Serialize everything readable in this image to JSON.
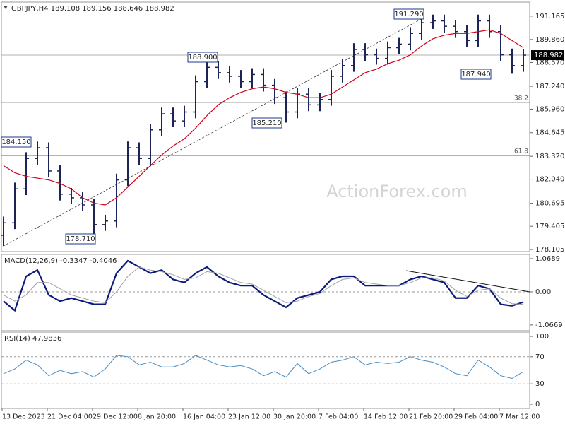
{
  "watermark": "ActionForex.com",
  "chart_data": [
    {
      "type": "ohlc",
      "title": "GBPJPY,H4  189.108 189.156 188.646 188.982",
      "color": "#1c2455",
      "categories": [
        "13 Dec 2023",
        null,
        null,
        null,
        "21 Dec 04:00",
        null,
        null,
        null,
        "29 Dec 12:00",
        null,
        null,
        null,
        "8 Jan 20:00",
        null,
        null,
        null,
        "16 Jan 04:00",
        null,
        null,
        null,
        "23 Jan 12:00",
        null,
        null,
        null,
        "30 Jan 20:00",
        null,
        null,
        null,
        "7 Feb 04:00",
        null,
        null,
        null,
        "14 Feb 12:00",
        null,
        null,
        null,
        "21 Feb 20:00",
        null,
        null,
        null,
        "29 Feb 04:00",
        null,
        null,
        null,
        "7 Mar 12:00",
        null,
        null
      ],
      "open": [
        178.9,
        179.6,
        181.5,
        183.2,
        183.8,
        182.5,
        181.2,
        181.0,
        180.6,
        179.5,
        179.7,
        182.0,
        183.8,
        183.2,
        184.8,
        185.7,
        185.3,
        185.8,
        187.5,
        188.3,
        188.0,
        187.8,
        187.5,
        187.9,
        187.3,
        186.6,
        185.8,
        186.8,
        186.2,
        186.5,
        187.8,
        188.4,
        189.3,
        189.0,
        188.8,
        189.4,
        189.6,
        190.2,
        190.8,
        190.9,
        190.6,
        190.3,
        189.8,
        190.9,
        190.3,
        189.0,
        188.4
      ],
      "high": [
        179.95,
        181.85,
        183.55,
        184.15,
        184.1,
        182.85,
        181.55,
        181.35,
        180.95,
        180.05,
        182.35,
        184.15,
        184.1,
        185.15,
        186.05,
        186.05,
        186.15,
        187.85,
        188.9,
        188.65,
        188.35,
        188.15,
        188.25,
        188.25,
        187.65,
        186.95,
        187.15,
        187.15,
        186.85,
        188.15,
        188.75,
        189.65,
        189.65,
        189.35,
        189.75,
        189.95,
        190.55,
        191.29,
        191.25,
        191.25,
        190.95,
        190.65,
        191.25,
        191.25,
        190.65,
        189.35,
        189.33
      ],
      "low": [
        178.3,
        179.25,
        181.15,
        182.85,
        182.15,
        180.85,
        180.65,
        180.25,
        178.71,
        179.15,
        179.35,
        181.65,
        182.85,
        182.85,
        184.45,
        184.95,
        184.95,
        185.45,
        187.15,
        187.65,
        187.45,
        187.15,
        187.15,
        186.95,
        186.25,
        185.21,
        185.45,
        185.85,
        185.85,
        186.15,
        187.45,
        188.05,
        188.65,
        188.45,
        188.45,
        189.05,
        189.25,
        189.85,
        190.45,
        190.25,
        189.95,
        189.45,
        189.45,
        189.95,
        188.65,
        187.94,
        188.05
      ],
      "close": [
        179.6,
        181.5,
        183.2,
        183.8,
        182.5,
        181.2,
        181.0,
        180.6,
        179.5,
        179.7,
        182.0,
        183.8,
        183.2,
        184.8,
        185.7,
        185.3,
        185.8,
        187.5,
        188.3,
        188.0,
        187.8,
        187.5,
        187.9,
        187.3,
        186.6,
        185.8,
        186.8,
        186.2,
        186.5,
        187.8,
        188.4,
        189.3,
        189.0,
        188.8,
        189.4,
        189.6,
        190.2,
        190.8,
        190.9,
        190.6,
        190.3,
        189.8,
        190.9,
        190.3,
        189.0,
        188.4,
        188.982
      ],
      "ma": {
        "color": "#d0021b",
        "values": [
          182.8,
          182.4,
          182.2,
          182.1,
          182.0,
          181.8,
          181.5,
          181.0,
          180.7,
          180.6,
          181.0,
          181.6,
          182.2,
          182.8,
          183.4,
          183.9,
          184.3,
          184.9,
          185.6,
          186.2,
          186.6,
          186.9,
          187.1,
          187.2,
          187.1,
          186.9,
          186.8,
          186.6,
          186.6,
          186.8,
          187.2,
          187.6,
          188.0,
          188.2,
          188.5,
          188.7,
          189.0,
          189.5,
          189.9,
          190.1,
          190.2,
          190.2,
          190.3,
          190.4,
          190.2,
          189.8,
          189.4
        ]
      },
      "last_price": 188.982,
      "levels": [
        {
          "name": "38.2",
          "value": 186.34
        },
        {
          "name": "61.8",
          "value": 183.37
        }
      ],
      "annotations": [
        "184.150",
        "178.710",
        "188.900",
        "185.210",
        "191.290",
        "187.940"
      ],
      "ylim": [
        177.99,
        191.95
      ],
      "yticks": [
        191.165,
        {
          "value": 189.86,
          "label": "189.860"
        },
        {
          "value": 188.57,
          "label": "188.570"
        },
        {
          "value": 187.24,
          "label": "187.240"
        },
        {
          "value": 185.96,
          "label": "185.960"
        },
        184.645,
        {
          "value": 183.32,
          "label": "183.320"
        },
        {
          "value": 182.04,
          "label": "182.040"
        },
        180.695,
        179.405,
        178.105
      ]
    },
    {
      "type": "line",
      "title": "MACD(12,26,9) -0.3347 -0.4046",
      "series": [
        {
          "color": "#0d1a7a",
          "width": 2.2,
          "values": [
            -0.3,
            -0.6,
            0.5,
            0.7,
            -0.1,
            -0.3,
            -0.2,
            -0.3,
            -0.4,
            -0.4,
            0.6,
            1.0,
            0.8,
            0.6,
            0.7,
            0.4,
            0.3,
            0.6,
            0.8,
            0.5,
            0.3,
            0.2,
            0.2,
            -0.1,
            -0.3,
            -0.5,
            -0.2,
            -0.1,
            0.0,
            0.4,
            0.5,
            0.5,
            0.2,
            0.2,
            0.2,
            0.2,
            0.4,
            0.5,
            0.4,
            0.3,
            -0.2,
            -0.2,
            0.2,
            0.1,
            -0.4,
            -0.45,
            -0.33
          ]
        },
        {
          "color": "#a0a0a0",
          "width": 1,
          "values": [
            -0.1,
            -0.3,
            -0.1,
            0.3,
            0.3,
            0.1,
            -0.1,
            -0.2,
            -0.3,
            -0.35,
            0.0,
            0.5,
            0.8,
            0.7,
            0.65,
            0.55,
            0.4,
            0.45,
            0.65,
            0.6,
            0.45,
            0.3,
            0.25,
            0.05,
            -0.15,
            -0.35,
            -0.3,
            -0.15,
            -0.05,
            0.2,
            0.4,
            0.45,
            0.3,
            0.25,
            0.2,
            0.2,
            0.3,
            0.45,
            0.45,
            0.35,
            0.05,
            -0.15,
            0.05,
            0.1,
            -0.2,
            -0.38,
            -0.4
          ]
        }
      ],
      "ylim": [
        -1.251,
        1.205
      ],
      "yticks": [
        1.0689,
        {
          "value": 0,
          "label": "0.00"
        },
        -1.0669
      ]
    },
    {
      "type": "line",
      "title": "RSI(14) 47.9836",
      "series": [
        {
          "color": "#4a8cc4",
          "width": 1,
          "values": [
            45,
            52,
            65,
            58,
            42,
            50,
            45,
            48,
            40,
            52,
            72,
            70,
            58,
            62,
            55,
            55,
            60,
            72,
            65,
            58,
            55,
            57,
            52,
            42,
            48,
            40,
            60,
            45,
            52,
            62,
            65,
            70,
            58,
            62,
            60,
            62,
            70,
            65,
            62,
            55,
            45,
            42,
            65,
            55,
            42,
            38,
            48
          ]
        }
      ],
      "ylim": [
        -6.25,
        106.25
      ],
      "yticks": [
        100,
        70,
        30,
        0
      ]
    }
  ]
}
